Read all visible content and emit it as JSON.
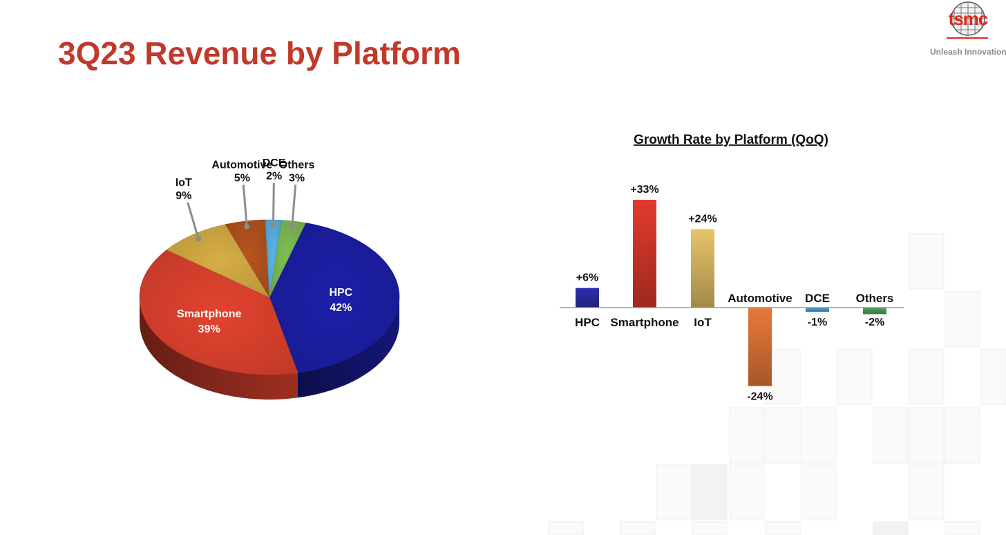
{
  "page": {
    "title": "3Q23 Revenue by Platform",
    "logo_text": "tsmc",
    "tagline": "Unleash Innovation",
    "title_color": "#c0392b",
    "logo_color": "#e0261b"
  },
  "chart_data": [
    {
      "type": "pie",
      "title": "",
      "slices": [
        {
          "label": "HPC",
          "value": 42,
          "display": "42%",
          "color": "#1c1fa8",
          "label_inside": true
        },
        {
          "label": "Smartphone",
          "value": 39,
          "display": "39%",
          "color": "#e2432f",
          "label_inside": true
        },
        {
          "label": "IoT",
          "value": 9,
          "display": "9%",
          "color": "#d7ae45",
          "label_inside": false
        },
        {
          "label": "Automotive",
          "value": 5,
          "display": "5%",
          "color": "#b8541f",
          "label_inside": false
        },
        {
          "label": "DCE",
          "value": 2,
          "display": "2%",
          "color": "#5ab4e8",
          "label_inside": false
        },
        {
          "label": "Others",
          "value": 3,
          "display": "3%",
          "color": "#7fbe55",
          "label_inside": false
        }
      ]
    },
    {
      "type": "bar",
      "title": "Growth Rate by Platform (QoQ)",
      "categories": [
        "HPC",
        "Smartphone",
        "IoT",
        "Automotive",
        "DCE",
        "Others"
      ],
      "values": [
        6,
        33,
        24,
        -24,
        -1,
        -2
      ],
      "value_labels": [
        "+6%",
        "+33%",
        "+24%",
        "-24%",
        "-1%",
        "-2%"
      ],
      "colors": [
        "#2c2fb0",
        "#e23a2c",
        "#e8c46a",
        "#e8793a",
        "#4a9fd8",
        "#4fa35a"
      ],
      "ylim": [
        -24,
        33
      ],
      "grid": false
    }
  ]
}
